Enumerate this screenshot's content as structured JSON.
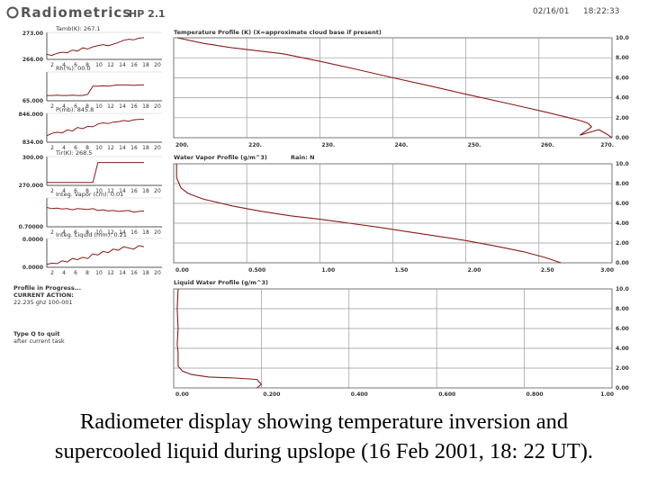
{
  "header": {
    "logo_text": "Radiometrics",
    "model": "HP 2.1",
    "date": "02/16/01",
    "time": "18:22:33"
  },
  "small_panels": [
    {
      "label": "Tamb(K): 267.1",
      "ymax": "273.00",
      "ymin": "266.00",
      "series_color": "#8b1a1a"
    },
    {
      "label": "Rh(%): 00.0",
      "ymax": "",
      "ymin": "65.000",
      "series_color": "#8b1a1a"
    },
    {
      "label": "P(mb): 845.8",
      "ymax": "846.000",
      "ymin": "834.00",
      "series_color": "#8b1a1a"
    },
    {
      "label": "Tir(K): 268.5",
      "ymax": "300.00",
      "ymin": "270.000",
      "series_color": "#8b1a1a"
    },
    {
      "label": "Integ. Vapor (cm): 0.01",
      "ymax": "",
      "ymin": "0.70000",
      "series_color": "#8b1a1a"
    },
    {
      "label": "Integ. Liquid (mm): 0.21",
      "ymax": "0.0000",
      "ymin": "0.0000",
      "series_color": "#8b1a1a"
    }
  ],
  "small_xticks": [
    "2",
    "4",
    "6",
    "8",
    "10",
    "12",
    "14",
    "16",
    "18",
    "20"
  ],
  "status": {
    "line1": "Profile in Progress...",
    "line2": "CURRENT ACTION:",
    "line3": "22.235 ghz 100-001",
    "line4": "Type Q to quit",
    "line5": "after current task"
  },
  "right_axis_ticks": [
    "10.0",
    "8.00",
    "6.00",
    "4.00",
    "2.00",
    "0.00"
  ],
  "chart_data": [
    {
      "type": "line",
      "title": "Temperature Profile (K) (X=approximate cloud base if present)",
      "xlabel": "",
      "ylabel": "",
      "x_ticks": [
        "200.",
        "220.",
        "230.",
        "240.",
        "250.",
        "260.",
        "270."
      ],
      "y_ticks": [
        "10.0",
        "8.00",
        "6.00",
        "4.00",
        "2.00",
        "0.00"
      ],
      "xlim": [
        210,
        270
      ],
      "ylim": [
        0,
        10
      ],
      "series": [
        {
          "color": "#8b1a1a",
          "x": [
            210.5,
            214.0,
            218.0,
            221.5,
            225.0,
            230.0,
            235.0,
            240.0,
            245.0,
            250.0,
            255.0,
            258.0,
            261.0,
            263.8,
            265.5,
            266.7,
            267.2,
            266.6,
            265.6,
            266.5,
            268.2,
            269.3,
            270.0
          ],
          "y": [
            10.0,
            9.45,
            9.0,
            8.7,
            8.4,
            7.65,
            6.85,
            6.0,
            5.2,
            4.35,
            3.55,
            3.05,
            2.55,
            2.05,
            1.75,
            1.45,
            1.1,
            0.75,
            0.25,
            0.45,
            0.8,
            0.35,
            0.0
          ]
        }
      ]
    },
    {
      "type": "line",
      "title": "Water Vapor Profile (g/m^3)",
      "annotation": "Rain: N",
      "x_ticks": [
        "0.00",
        "0.500",
        "1.00",
        "1.50",
        "2.00",
        "2.50",
        "3.00"
      ],
      "y_ticks": [
        "10.0",
        "8.00",
        "6.00",
        "4.00",
        "2.00",
        "0.00"
      ],
      "xlim": [
        0,
        3
      ],
      "ylim": [
        0,
        10
      ],
      "series": [
        {
          "color": "#8b1a1a",
          "x": [
            0.02,
            0.02,
            0.05,
            0.1,
            0.2,
            0.4,
            0.6,
            0.8,
            1.0,
            1.2,
            1.4,
            1.6,
            1.8,
            2.0,
            2.2,
            2.4,
            2.55,
            2.65
          ],
          "y": [
            10.0,
            8.6,
            7.55,
            7.0,
            6.45,
            5.75,
            5.2,
            4.75,
            4.4,
            4.0,
            3.6,
            3.15,
            2.7,
            2.25,
            1.7,
            1.1,
            0.5,
            0.0
          ]
        }
      ]
    },
    {
      "type": "line",
      "title": "Liquid Water Profile (g/m^3)",
      "x_ticks": [
        "0.00",
        "0.200",
        "0.400",
        "0.600",
        "0.800",
        "1.00"
      ],
      "y_ticks": [
        "10.0",
        "8.00",
        "6.00",
        "4.00",
        "2.00",
        "0.00"
      ],
      "xlim": [
        0,
        1
      ],
      "ylim": [
        0,
        10
      ],
      "series": [
        {
          "color": "#8b1a1a",
          "x": [
            0.01,
            0.008,
            0.01,
            0.008,
            0.01,
            0.01,
            0.02,
            0.04,
            0.08,
            0.14,
            0.19,
            0.2,
            0.19
          ],
          "y": [
            10.0,
            8.0,
            6.0,
            4.4,
            3.6,
            2.2,
            1.7,
            1.35,
            1.1,
            1.0,
            0.85,
            0.35,
            0.0
          ]
        }
      ]
    }
  ],
  "caption": {
    "line1": "Radiometer display showing temperature inversion and",
    "line2": "supercooled liquid during upslope (16 Feb 2001, 18: 22 UT)."
  }
}
